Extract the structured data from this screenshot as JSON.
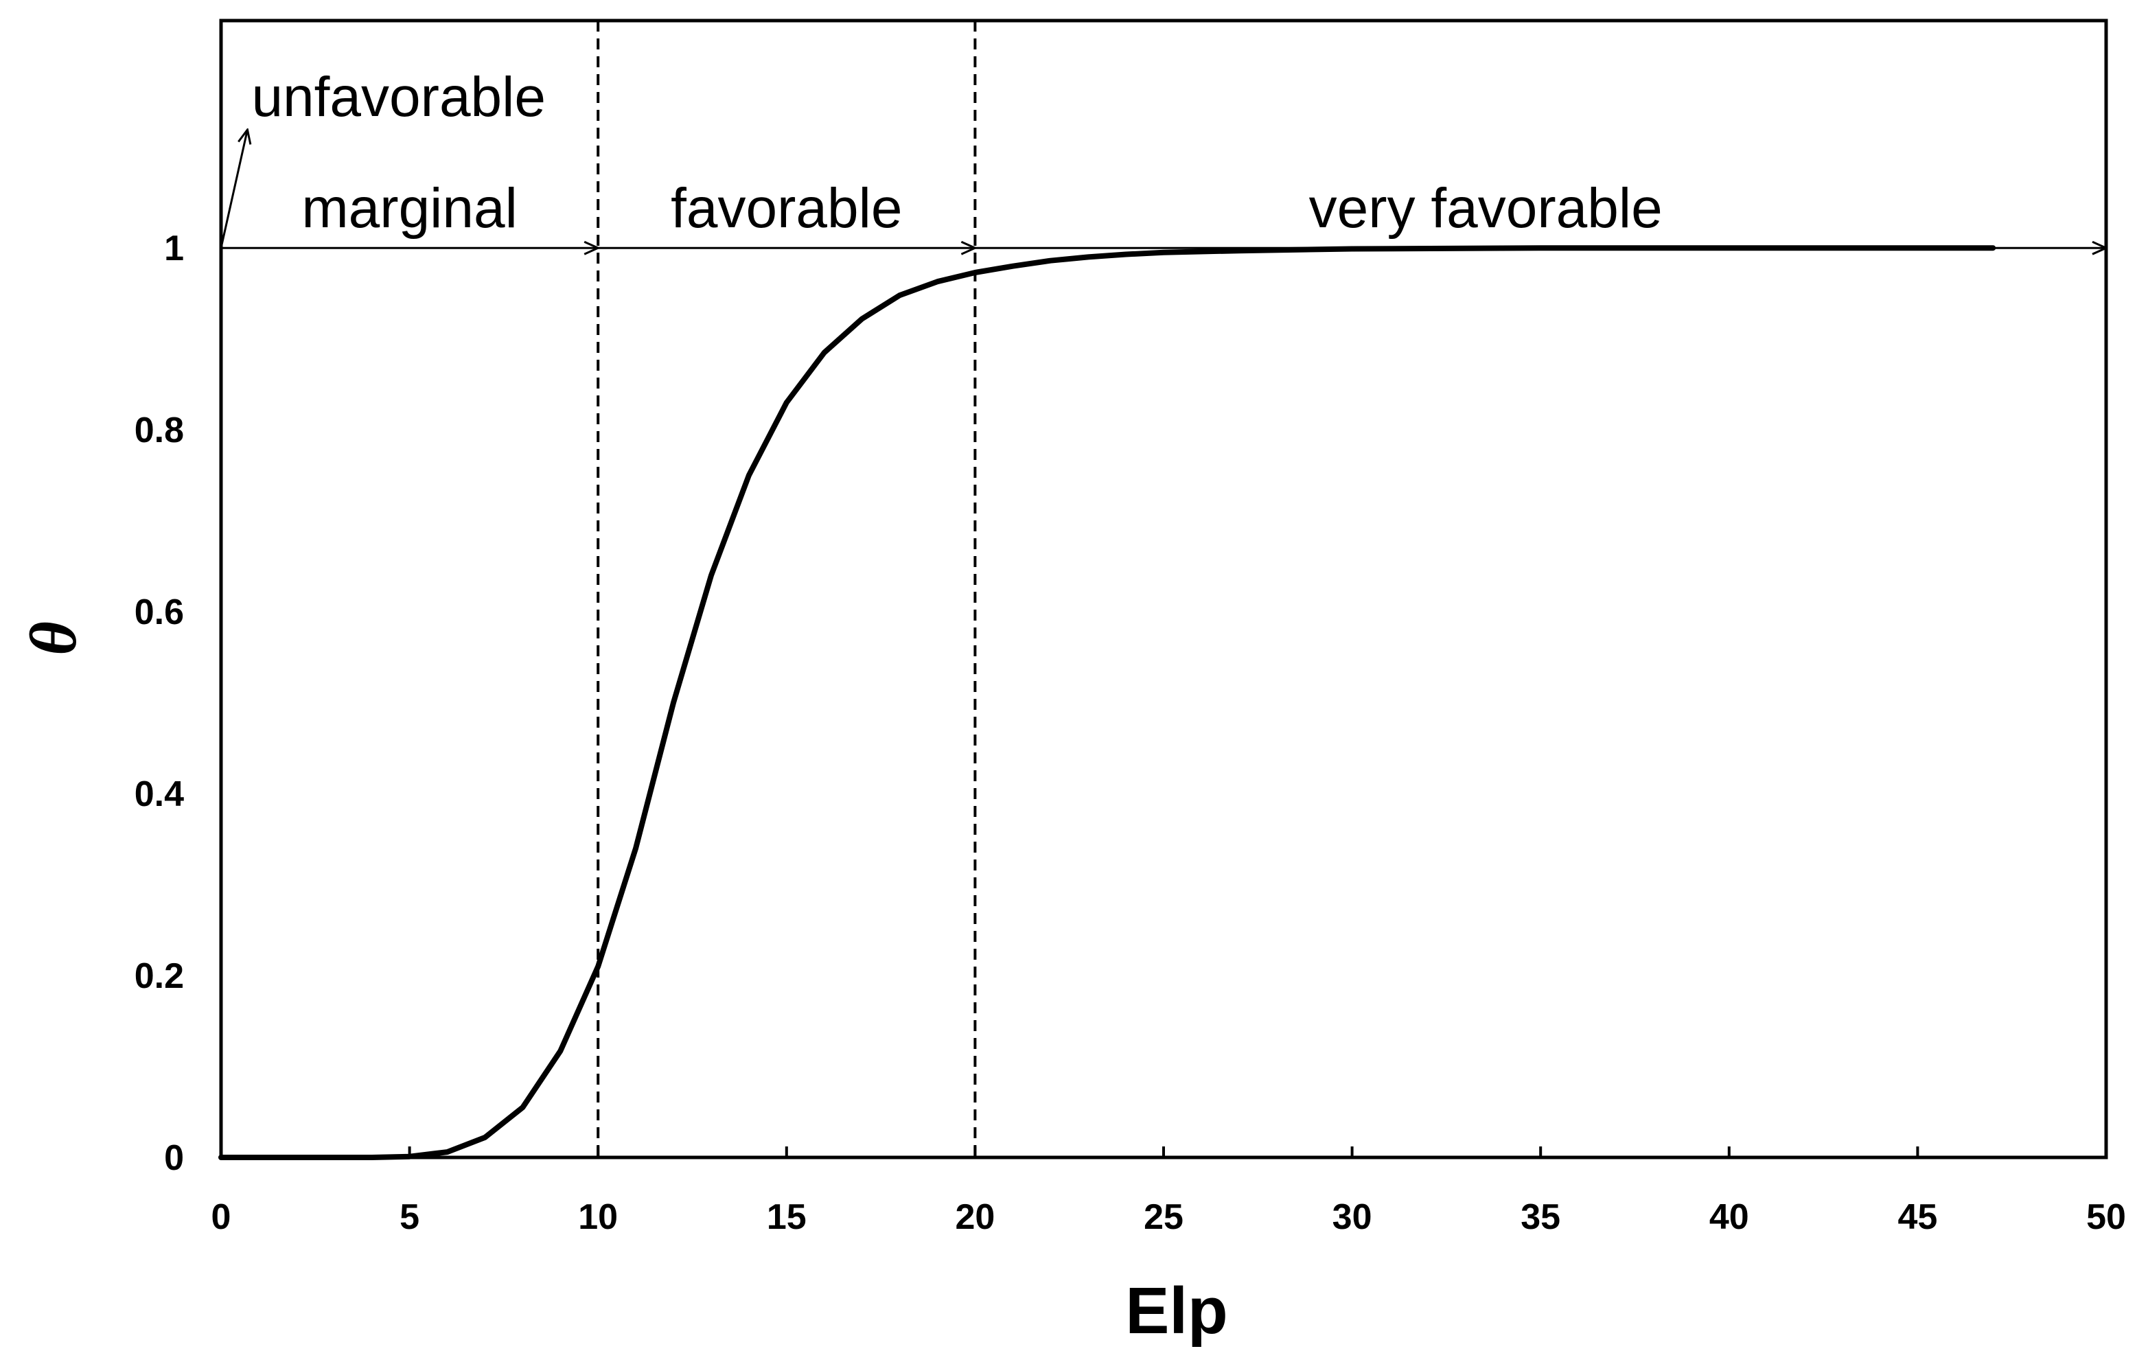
{
  "chart_data": {
    "type": "line",
    "title": "",
    "xlabel": "Elp",
    "ylabel": "θ",
    "xlim": [
      0,
      50
    ],
    "ylim": [
      0,
      1.25
    ],
    "x_ticks": [
      "0",
      "5",
      "10",
      "15",
      "20",
      "25",
      "30",
      "35",
      "40",
      "45",
      "50"
    ],
    "y_ticks": [
      {
        "value": 0,
        "label": "0"
      },
      {
        "value": 0.2,
        "label": "0.2"
      },
      {
        "value": 0.4,
        "label": "0.4"
      },
      {
        "value": 0.6,
        "label": "0.6"
      },
      {
        "value": 0.8,
        "label": "0.8"
      },
      {
        "value": 1,
        "label": "1"
      }
    ],
    "grid": false,
    "series": [
      {
        "x": [
          0,
          1,
          2,
          3,
          4,
          5,
          6,
          7,
          8,
          9,
          10,
          11,
          12,
          13,
          14,
          15,
          16,
          17,
          18,
          19,
          20,
          21,
          22,
          23,
          24,
          25,
          27,
          30,
          35,
          40,
          45,
          47
        ],
        "y": [
          0,
          0,
          0,
          0,
          0,
          0.001,
          0.006,
          0.022,
          0.055,
          0.117,
          0.21,
          0.34,
          0.5,
          0.64,
          0.75,
          0.83,
          0.885,
          0.922,
          0.948,
          0.963,
          0.973,
          0.98,
          0.986,
          0.99,
          0.993,
          0.995,
          0.997,
          0.999,
          1.0,
          1.0,
          1.0,
          1.0
        ],
        "color": "#000000"
      }
    ],
    "reference_lines": [
      {
        "orientation": "vertical",
        "x": 10,
        "style": "dashed"
      },
      {
        "orientation": "vertical",
        "x": 20,
        "style": "dashed"
      }
    ],
    "region_arrows": [
      {
        "label": "unfavorable",
        "from": [
          0,
          1
        ],
        "to": [
          0.7,
          1.13
        ]
      },
      {
        "label": "marginal",
        "from": [
          0,
          1
        ],
        "to": [
          10,
          1
        ]
      },
      {
        "label": "favorable",
        "from": [
          10,
          1
        ],
        "to": [
          20,
          1
        ]
      },
      {
        "label": "very favorable",
        "from": [
          20,
          1
        ],
        "to": [
          50,
          1
        ]
      }
    ]
  }
}
